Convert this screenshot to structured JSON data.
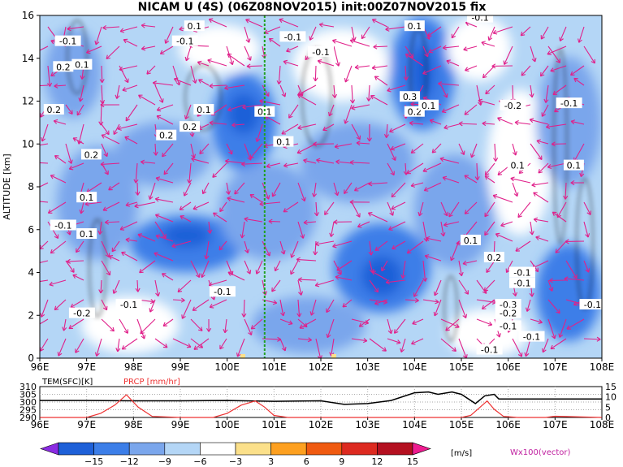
{
  "title": "NICAM U (4S) (06Z08NOV2015) init:00Z07NOV2015 fix",
  "chart_data": [
    {
      "type": "heatmap",
      "subtype": "filled-contour cross-section with vector overlay",
      "ylabel": "ALTITUDE [km]",
      "xlim_deg_east": [
        96,
        108
      ],
      "ylim": [
        0,
        16
      ],
      "x_ticks": [
        "96E",
        "97E",
        "98E",
        "99E",
        "100E",
        "101E",
        "102E",
        "103E",
        "104E",
        "105E",
        "106E",
        "107E",
        "108E"
      ],
      "y_ticks": [
        "0",
        "2",
        "4",
        "6",
        "8",
        "10",
        "12",
        "14",
        "16"
      ],
      "marker_line_x_deg": 100.8,
      "contour_labels": [
        {
          "text": "-0.1",
          "x": 96.6,
          "y": 14.8
        },
        {
          "text": "0.2",
          "x": 96.5,
          "y": 13.6
        },
        {
          "text": "0.1",
          "x": 96.9,
          "y": 13.7
        },
        {
          "text": "0.2",
          "x": 96.3,
          "y": 11.6
        },
        {
          "text": "0.2",
          "x": 97.1,
          "y": 9.5
        },
        {
          "text": "0.1",
          "x": 97.0,
          "y": 7.5
        },
        {
          "text": "-0.1",
          "x": 96.5,
          "y": 6.2
        },
        {
          "text": "0.1",
          "x": 97.0,
          "y": 5.8
        },
        {
          "text": "-0.2",
          "x": 96.9,
          "y": 2.1
        },
        {
          "text": "-0.1",
          "x": 97.9,
          "y": 2.5
        },
        {
          "text": "0.1",
          "x": 99.3,
          "y": 15.5
        },
        {
          "text": "-0.1",
          "x": 99.1,
          "y": 14.8
        },
        {
          "text": "0.1",
          "x": 99.5,
          "y": 11.6
        },
        {
          "text": "0.2",
          "x": 99.2,
          "y": 10.8
        },
        {
          "text": "0.2",
          "x": 98.7,
          "y": 10.4
        },
        {
          "text": "0.1",
          "x": 100.8,
          "y": 11.5
        },
        {
          "text": "0.1",
          "x": 101.2,
          "y": 10.1
        },
        {
          "text": "-0.1",
          "x": 99.9,
          "y": 3.1
        },
        {
          "text": "-0.1",
          "x": 101.4,
          "y": 15.0
        },
        {
          "text": "-0.1",
          "x": 102.0,
          "y": 14.3
        },
        {
          "text": "0.1",
          "x": 104.0,
          "y": 15.5
        },
        {
          "text": "-0.1",
          "x": 105.4,
          "y": 15.9
        },
        {
          "text": "0.3",
          "x": 103.9,
          "y": 12.2
        },
        {
          "text": "0.2",
          "x": 104.0,
          "y": 11.5
        },
        {
          "text": "0.1",
          "x": 104.3,
          "y": 11.8
        },
        {
          "text": "0.1",
          "x": 105.2,
          "y": 5.5
        },
        {
          "text": "0.2",
          "x": 105.7,
          "y": 4.7
        },
        {
          "text": "-0.2",
          "x": 106.1,
          "y": 11.8
        },
        {
          "text": "-0.1",
          "x": 107.3,
          "y": 11.9
        },
        {
          "text": "0.1",
          "x": 106.2,
          "y": 9.0
        },
        {
          "text": "0.1",
          "x": 107.4,
          "y": 9.0
        },
        {
          "text": "-0.1",
          "x": 106.3,
          "y": 4.0
        },
        {
          "text": "-0.1",
          "x": 106.3,
          "y": 3.5
        },
        {
          "text": "-0.3",
          "x": 106.0,
          "y": 2.5
        },
        {
          "text": "-0.2",
          "x": 106.0,
          "y": 2.1
        },
        {
          "text": "-0.1",
          "x": 106.0,
          "y": 1.5
        },
        {
          "text": "-0.1",
          "x": 106.5,
          "y": 1.0
        },
        {
          "text": "-0.1",
          "x": 107.8,
          "y": 2.5
        },
        {
          "text": "-0.1",
          "x": 105.6,
          "y": 0.4
        }
      ]
    },
    {
      "type": "line",
      "series": [
        {
          "name": "TEM(SFC)[K]",
          "color": "#000000",
          "x": [
            96,
            97,
            98,
            99,
            100,
            101,
            102,
            102.5,
            103,
            103.5,
            104,
            104.3,
            104.5,
            104.8,
            105,
            105.3,
            105.5,
            105.7,
            105.8,
            106,
            107,
            108
          ],
          "y": [
            301,
            301,
            300.8,
            300.8,
            301,
            300.5,
            300.8,
            298.5,
            299,
            301,
            306,
            306.5,
            305,
            306.5,
            305,
            299,
            304,
            305,
            302,
            302,
            302,
            302
          ]
        },
        {
          "name": "PRCP [mm/hr]",
          "color": "#ee3333",
          "x": [
            96,
            97,
            97.3,
            97.6,
            97.85,
            98.1,
            98.4,
            99,
            99.7,
            100,
            100.3,
            100.6,
            100.8,
            101,
            101.3,
            102,
            103,
            104,
            105,
            105.2,
            105.4,
            105.55,
            105.7,
            105.9,
            106.2,
            106.8,
            107,
            108
          ],
          "y": [
            0,
            0,
            2,
            6,
            11,
            5,
            0.5,
            0,
            0,
            2,
            6,
            8,
            5,
            1,
            0,
            0,
            0,
            0,
            0,
            1,
            5,
            8,
            4,
            0.5,
            0,
            0,
            0.6,
            0
          ]
        }
      ],
      "left_ticks": [
        "310",
        "305",
        "300",
        "295",
        "290"
      ],
      "right_ticks": [
        "15",
        "10",
        "5",
        "0"
      ],
      "ylim_left": [
        290,
        310
      ],
      "ylim_right": [
        0,
        15
      ],
      "x_ticks": [
        "96E",
        "97E",
        "98E",
        "99E",
        "100E",
        "101E",
        "102E",
        "103E",
        "104E",
        "105E",
        "106E",
        "107E",
        "108E"
      ]
    },
    {
      "type": "colorbar",
      "tick_labels": [
        "−15",
        "−12",
        "−9",
        "−6",
        "−3",
        "3",
        "6",
        "9",
        "12",
        "15"
      ],
      "unit": "[m/s]",
      "colors": [
        "#8a2be2",
        "#1e60d8",
        "#3c7ee8",
        "#7aa6ec",
        "#b4d6f6",
        "#ffffff",
        "#fbe08a",
        "#fda020",
        "#f05a10",
        "#dd2a20",
        "#b41020",
        "#ee1c90"
      ],
      "vector_label": "Wx100(vector)"
    }
  ]
}
